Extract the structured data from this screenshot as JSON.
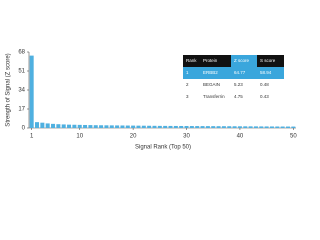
{
  "chart_data": {
    "type": "bar",
    "y_label": "Strength of Signal (Z score)",
    "x_label": "Signal Rank (Top 50)",
    "x": [
      1,
      2,
      3,
      4,
      5,
      6,
      7,
      8,
      9,
      10,
      11,
      12,
      13,
      14,
      15,
      16,
      17,
      18,
      19,
      20,
      21,
      22,
      23,
      24,
      25,
      26,
      27,
      28,
      29,
      30,
      31,
      32,
      33,
      34,
      35,
      36,
      37,
      38,
      39,
      40,
      41,
      42,
      43,
      44,
      45,
      46,
      47,
      48,
      49,
      50
    ],
    "values": [
      64.77,
      5.23,
      4.75,
      4.1,
      3.7,
      3.4,
      3.2,
      3.0,
      2.9,
      2.8,
      2.7,
      2.6,
      2.5,
      2.45,
      2.4,
      2.35,
      2.3,
      2.25,
      2.2,
      2.15,
      2.1,
      2.05,
      2.0,
      1.95,
      1.9,
      1.88,
      1.85,
      1.82,
      1.8,
      1.78,
      1.75,
      1.72,
      1.7,
      1.68,
      1.65,
      1.62,
      1.6,
      1.58,
      1.55,
      1.52,
      1.5,
      1.48,
      1.45,
      1.42,
      1.4,
      1.38,
      1.35,
      1.32,
      1.3,
      1.28
    ],
    "color": "#4fb0e0",
    "xlim": [
      0.5,
      50.5
    ],
    "xticks": [
      1,
      10,
      20,
      30,
      40,
      50
    ],
    "ylim": [
      0,
      68
    ],
    "yticks": [
      0,
      17,
      34,
      51,
      68
    ],
    "table": {
      "columns": [
        "Rank",
        "Protein",
        "Z score",
        "S score"
      ],
      "rows": [
        [
          1,
          "ERBB2",
          64.77,
          58.94
        ],
        [
          2,
          "BEGAIN",
          5.23,
          0.48
        ],
        [
          3,
          "Transferrin",
          4.75,
          0.43
        ]
      ]
    }
  }
}
